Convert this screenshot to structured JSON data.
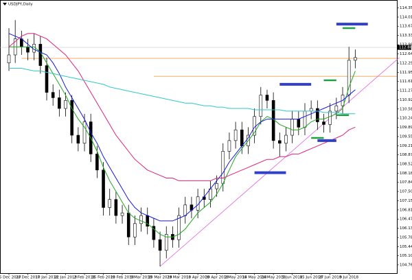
{
  "chart_data": {
    "type": "candlestick",
    "title": "USDJPY,Daily",
    "open": [
      112.3,
      112.6,
      113.2,
      112.9,
      112.7,
      113.0,
      112.2,
      111.2,
      111.0,
      110.6,
      110.9,
      109.6,
      109.3,
      110.1,
      108.9,
      108.3,
      106.9,
      107.2,
      106.6,
      106.7,
      105.8,
      106.3,
      106.6,
      106.2,
      105.7,
      105.3,
      105.9,
      105.7,
      106.6,
      107.0,
      106.8,
      107.3,
      107.2,
      107.6,
      107.8,
      109.0,
      109.4,
      109.8,
      109.2,
      109.6,
      110.3,
      111.1,
      110.9,
      109.4,
      109.3,
      109.6,
      110.2,
      109.9,
      110.5,
      110.6,
      110.1,
      110.0,
      110.5,
      110.7,
      111.1,
      112.4
    ],
    "high": [
      113.6,
      113.9,
      113.5,
      113.2,
      113.4,
      113.3,
      112.5,
      111.5,
      111.3,
      111.2,
      111.1,
      109.9,
      110.4,
      110.4,
      109.2,
      108.6,
      107.6,
      107.5,
      107.0,
      107.0,
      106.6,
      106.9,
      106.9,
      106.5,
      106.0,
      106.2,
      106.2,
      106.9,
      107.3,
      107.3,
      107.6,
      107.6,
      107.9,
      108.1,
      109.3,
      109.7,
      110.1,
      110.1,
      109.9,
      110.6,
      111.4,
      111.3,
      111.2,
      109.7,
      109.9,
      110.5,
      110.5,
      110.8,
      110.9,
      110.9,
      110.4,
      110.8,
      111.0,
      111.4,
      112.9,
      112.8
    ],
    "low": [
      112.0,
      112.3,
      112.6,
      112.4,
      112.4,
      111.9,
      110.9,
      110.7,
      110.3,
      110.3,
      109.3,
      109.0,
      109.0,
      108.6,
      108.0,
      106.6,
      106.6,
      106.3,
      106.3,
      105.5,
      105.5,
      106.0,
      105.9,
      105.4,
      104.7,
      105.0,
      105.4,
      105.4,
      106.3,
      106.5,
      106.5,
      106.9,
      106.9,
      107.3,
      107.5,
      108.7,
      109.1,
      108.9,
      108.9,
      109.3,
      110.0,
      110.6,
      109.1,
      108.8,
      109.0,
      109.3,
      109.6,
      109.6,
      110.2,
      109.8,
      109.7,
      109.7,
      110.2,
      110.4,
      110.8,
      112.1
    ],
    "close": [
      112.6,
      113.2,
      112.9,
      112.7,
      113.0,
      112.2,
      111.2,
      111.0,
      110.6,
      110.9,
      109.6,
      109.3,
      110.1,
      108.9,
      108.3,
      106.9,
      107.2,
      106.6,
      106.7,
      105.8,
      106.3,
      106.6,
      106.2,
      105.7,
      105.3,
      105.9,
      105.7,
      106.6,
      107.0,
      106.8,
      107.3,
      107.2,
      107.6,
      107.8,
      109.0,
      109.4,
      109.8,
      109.2,
      109.6,
      110.3,
      111.1,
      110.9,
      109.4,
      109.3,
      109.6,
      110.2,
      109.9,
      110.5,
      110.6,
      110.1,
      110.0,
      110.5,
      110.7,
      111.1,
      112.4,
      112.5
    ],
    "series": [
      {
        "color": "#1fa71f",
        "values": [
          112.9,
          112.9,
          112.9,
          112.9,
          112.9,
          112.7,
          112.3,
          111.9,
          111.5,
          111.1,
          110.6,
          110.2,
          109.9,
          109.5,
          109.0,
          108.4,
          107.9,
          107.5,
          107.1,
          106.7,
          106.5,
          106.4,
          106.3,
          106.1,
          105.9,
          105.8,
          105.8,
          105.9,
          106.1,
          106.4,
          106.7,
          106.9,
          107.1,
          107.4,
          107.8,
          108.3,
          108.8,
          109.1,
          109.4,
          109.7,
          110.1,
          110.3,
          110.2,
          110.0,
          109.9,
          109.8,
          109.8,
          109.9,
          110.1,
          110.2,
          110.2,
          110.3,
          110.4,
          110.6,
          111.4,
          112.0
        ]
      },
      {
        "color": "#1414e6",
        "values": [
          113.4,
          113.3,
          113.2,
          113.0,
          112.8,
          112.7,
          112.6,
          112.3,
          111.9,
          111.4,
          111.0,
          110.6,
          110.2,
          109.7,
          109.3,
          108.8,
          108.4,
          108.0,
          107.6,
          107.2,
          106.9,
          106.7,
          106.6,
          106.5,
          106.4,
          106.4,
          106.4,
          106.5,
          106.6,
          106.8,
          107.0,
          107.3,
          107.6,
          107.9,
          108.2,
          108.6,
          108.9,
          109.2,
          109.5,
          109.9,
          110.1,
          110.2,
          110.2,
          110.2,
          110.2,
          110.2,
          110.2,
          110.3,
          110.4,
          110.5,
          110.6,
          110.7,
          110.8,
          110.9,
          111.1,
          111.3
        ]
      },
      {
        "color": "#e0207a",
        "values": [
          112.9,
          113.1,
          113.3,
          113.4,
          113.4,
          113.3,
          113.2,
          113.0,
          112.8,
          112.6,
          112.3,
          112.0,
          111.6,
          111.2,
          110.8,
          110.4,
          110.0,
          109.6,
          109.3,
          109.0,
          108.7,
          108.5,
          108.3,
          108.2,
          108.1,
          108.0,
          108.0,
          107.9,
          107.9,
          107.9,
          107.9,
          107.9,
          107.9,
          108.0,
          108.0,
          108.1,
          108.2,
          108.3,
          108.4,
          108.5,
          108.6,
          108.7,
          108.7,
          108.8,
          108.8,
          108.9,
          108.9,
          109.0,
          109.1,
          109.2,
          109.3,
          109.4,
          109.5,
          109.6,
          109.8,
          109.9
        ]
      },
      {
        "color": "#2ec8c8",
        "values": [
          112.1,
          112.1,
          112.1,
          112.05,
          112.0,
          112.0,
          111.95,
          111.9,
          111.85,
          111.8,
          111.75,
          111.7,
          111.65,
          111.6,
          111.55,
          111.5,
          111.4,
          111.35,
          111.3,
          111.25,
          111.2,
          111.15,
          111.1,
          111.05,
          111.0,
          110.95,
          110.9,
          110.85,
          110.8,
          110.8,
          110.75,
          110.7,
          110.7,
          110.65,
          110.65,
          110.6,
          110.6,
          110.6,
          110.6,
          110.55,
          110.55,
          110.55,
          110.55,
          110.55,
          110.5,
          110.5,
          110.5,
          110.5,
          110.5,
          110.5,
          110.45,
          110.45,
          110.45,
          110.4,
          110.4,
          110.4
        ]
      }
    ],
    "levels": [
      {
        "value": 112.47,
        "from": 2,
        "color": "#f0a050"
      },
      {
        "value": 111.8,
        "from": 23,
        "color": "#f0a050"
      }
    ],
    "trendline": {
      "from": 24,
      "from_value": 104.7,
      "to": 62,
      "to_value": 112.5,
      "color": "#e060e0"
    },
    "markers": [
      {
        "value": 113.75,
        "from": 52,
        "to": 57,
        "color": "#3040c8"
      },
      {
        "value": 113.6,
        "from": 53,
        "to": 55,
        "color": "#20a040"
      },
      {
        "value": 111.5,
        "from": 43,
        "to": 48,
        "color": "#3040c8"
      },
      {
        "value": 111.65,
        "from": 50,
        "to": 52,
        "color": "#20a040"
      },
      {
        "value": 110.35,
        "from": 52,
        "to": 54,
        "color": "#20a040"
      },
      {
        "value": 109.5,
        "from": 48,
        "to": 50,
        "color": "#20a040"
      },
      {
        "value": 109.4,
        "from": 49,
        "to": 52,
        "color": "#3040c8"
      },
      {
        "value": 108.2,
        "from": 39,
        "to": 44,
        "color": "#3040c8"
      }
    ],
    "price_label": {
      "value": 112.88,
      "label": "112.880"
    },
    "x_labels": [
      {
        "index": 0,
        "label": "15 Dec 2017"
      },
      {
        "index": 3,
        "label": "28 Dec 2017"
      },
      {
        "index": 6,
        "label": "10 Jan 2018"
      },
      {
        "index": 9,
        "label": "22 Jan 2018"
      },
      {
        "index": 12,
        "label": "2 Feb 2018"
      },
      {
        "index": 15,
        "label": "15 Feb 2018"
      },
      {
        "index": 18,
        "label": "28 Feb 2018"
      },
      {
        "index": 21,
        "label": "9 Mar 2018"
      },
      {
        "index": 24,
        "label": "19 Mar 2018"
      },
      {
        "index": 27,
        "label": "29 Mar 2018"
      },
      {
        "index": 30,
        "label": "10 Apr 2018"
      },
      {
        "index": 33,
        "label": "20 Apr 2018"
      },
      {
        "index": 36,
        "label": "2 May 2018"
      },
      {
        "index": 39,
        "label": "14 May 2018"
      },
      {
        "index": 42,
        "label": "24 May 2018"
      },
      {
        "index": 45,
        "label": "5 Jun 2018"
      },
      {
        "index": 48,
        "label": "15 Jun 2018"
      },
      {
        "index": 51,
        "label": "27 Jun 2018"
      },
      {
        "index": 54,
        "label": "9 Jul 2018"
      }
    ],
    "ylim": [
      104.45,
      114.65
    ],
    "yticks": [
      {
        "value": 104.76,
        "label": "104.760"
      },
      {
        "value": 105.1,
        "label": "105.100"
      },
      {
        "value": 105.44,
        "label": "105.440"
      },
      {
        "value": 105.78,
        "label": "105.780"
      },
      {
        "value": 106.13,
        "label": "106.130"
      },
      {
        "value": 106.47,
        "label": "106.470"
      },
      {
        "value": 106.81,
        "label": "106.810"
      },
      {
        "value": 107.15,
        "label": "107.150"
      },
      {
        "value": 107.5,
        "label": "107.500"
      },
      {
        "value": 107.84,
        "label": "107.840"
      },
      {
        "value": 108.18,
        "label": "108.180"
      },
      {
        "value": 108.52,
        "label": "108.520"
      },
      {
        "value": 108.87,
        "label": "108.870"
      },
      {
        "value": 109.21,
        "label": "109.210"
      },
      {
        "value": 109.55,
        "label": "109.550"
      },
      {
        "value": 109.89,
        "label": "109.890"
      },
      {
        "value": 110.24,
        "label": "110.240"
      },
      {
        "value": 110.58,
        "label": "110.580"
      },
      {
        "value": 110.92,
        "label": "110.920"
      },
      {
        "value": 111.27,
        "label": "111.270"
      },
      {
        "value": 111.61,
        "label": "111.610"
      },
      {
        "value": 111.95,
        "label": "111.950"
      },
      {
        "value": 112.29,
        "label": "112.290"
      },
      {
        "value": 112.64,
        "label": "112.640"
      },
      {
        "value": 112.98,
        "label": "112.980"
      },
      {
        "value": 113.33,
        "label": "113.330"
      },
      {
        "value": 113.67,
        "label": "113.670"
      },
      {
        "value": 114.01,
        "label": "114.010"
      },
      {
        "value": 114.35,
        "label": "114.350"
      }
    ]
  }
}
